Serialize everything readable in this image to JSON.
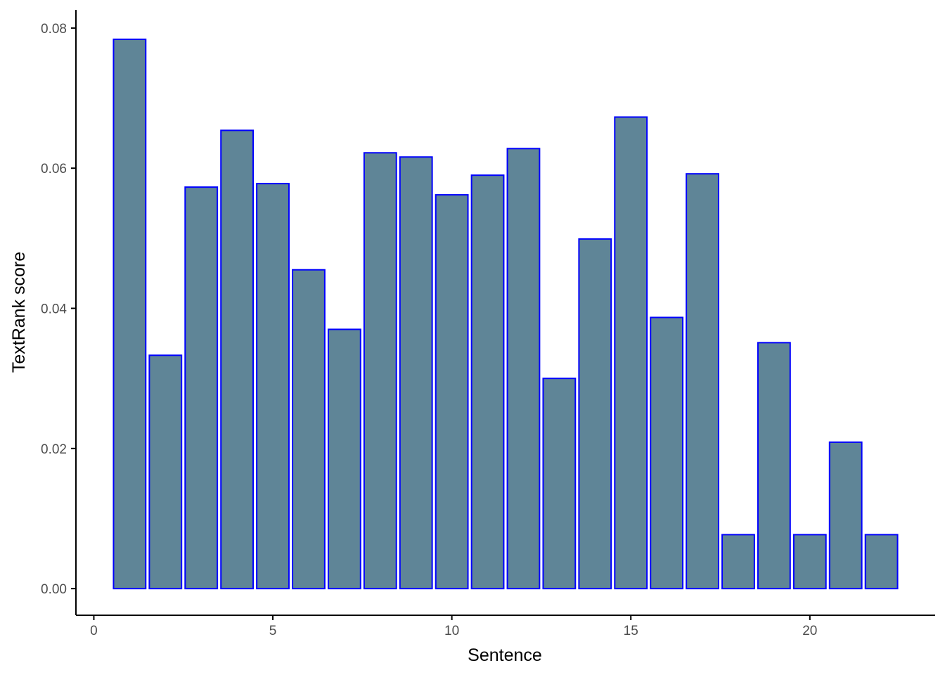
{
  "chart_data": {
    "type": "bar",
    "x": [
      1,
      2,
      3,
      4,
      5,
      6,
      7,
      8,
      9,
      10,
      11,
      12,
      13,
      14,
      15,
      16,
      17,
      18,
      19,
      20,
      21,
      22
    ],
    "values": [
      0.0784,
      0.0333,
      0.0573,
      0.0654,
      0.0578,
      0.0455,
      0.037,
      0.0622,
      0.0616,
      0.0562,
      0.059,
      0.0628,
      0.03,
      0.0499,
      0.0673,
      0.0387,
      0.0592,
      0.0077,
      0.0351,
      0.0077,
      0.0209,
      0.0077
    ],
    "xlabel": "Sentence",
    "ylabel": "TextRank score",
    "xlim": [
      -0.5,
      23.5
    ],
    "ylim": [
      -0.0038,
      0.0826
    ],
    "xticks": [
      0,
      5,
      10,
      15,
      20
    ],
    "yticks": [
      0.0,
      0.02,
      0.04,
      0.06,
      0.08
    ],
    "ytick_labels": [
      "0.00",
      "0.02",
      "0.04",
      "0.06",
      "0.08"
    ],
    "bar_fill": "#5f8597",
    "bar_stroke": "#0000ff",
    "axis_color": "#000000",
    "grid": false
  }
}
